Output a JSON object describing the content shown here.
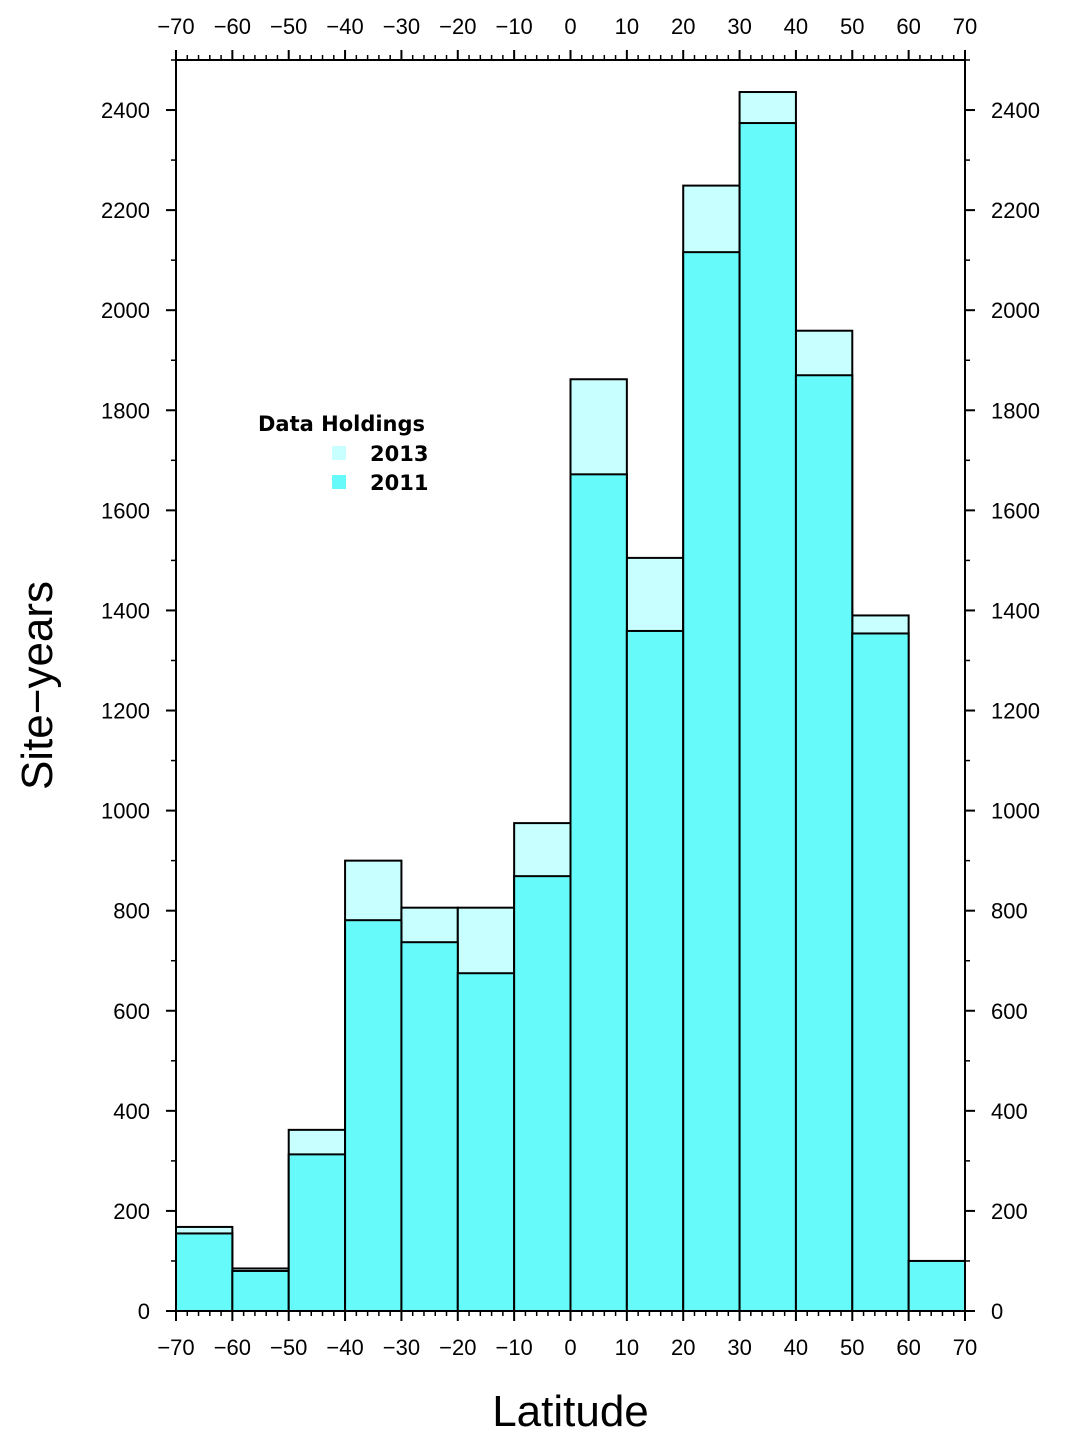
{
  "chart_data": {
    "type": "bar",
    "bins": [
      [
        -70,
        -60
      ],
      [
        -60,
        -50
      ],
      [
        -50,
        -40
      ],
      [
        -40,
        -30
      ],
      [
        -30,
        -20
      ],
      [
        -20,
        -10
      ],
      [
        -10,
        0
      ],
      [
        0,
        10
      ],
      [
        10,
        20
      ],
      [
        20,
        30
      ],
      [
        30,
        40
      ],
      [
        40,
        50
      ],
      [
        50,
        60
      ],
      [
        60,
        70
      ]
    ],
    "series": [
      {
        "name": "2013",
        "color": "#c8ffff",
        "values": [
          168,
          85,
          362,
          900,
          806,
          806,
          975,
          1862,
          1505,
          2249,
          2436,
          1959,
          1390,
          100
        ]
      },
      {
        "name": "2011",
        "color": "#66fafa",
        "values": [
          155,
          80,
          313,
          781,
          737,
          675,
          869,
          1672,
          1359,
          2116,
          2374,
          1870,
          1354,
          100
        ]
      }
    ],
    "xlabel": "Latitude",
    "ylabel": "Site−years",
    "xlim": [
      -70,
      70
    ],
    "ylim": [
      0,
      2500
    ],
    "xticks": [
      -70,
      -60,
      -50,
      -40,
      -30,
      -20,
      -10,
      0,
      10,
      20,
      30,
      40,
      50,
      60,
      70
    ],
    "xtick_labels": [
      "−70",
      "−60",
      "−50",
      "−40",
      "−30",
      "−20",
      "−10",
      "0",
      "10",
      "20",
      "30",
      "40",
      "50",
      "60",
      "70"
    ],
    "yticks": [
      0,
      200,
      400,
      600,
      800,
      1000,
      1200,
      1400,
      1600,
      1800,
      2000,
      2200,
      2400
    ],
    "ytick_labels": [
      "0",
      "200",
      "400",
      "600",
      "800",
      "1000",
      "1200",
      "1400",
      "1600",
      "1800",
      "2000",
      "2200",
      "2400"
    ],
    "legend": {
      "title": "Data Holdings",
      "entries": [
        "2013",
        "2011"
      ],
      "placement": "upper-left"
    },
    "grid": false,
    "colors": {
      "series_2013": "#c8ffff",
      "series_2011": "#66fafa",
      "outline": "#000000"
    }
  }
}
